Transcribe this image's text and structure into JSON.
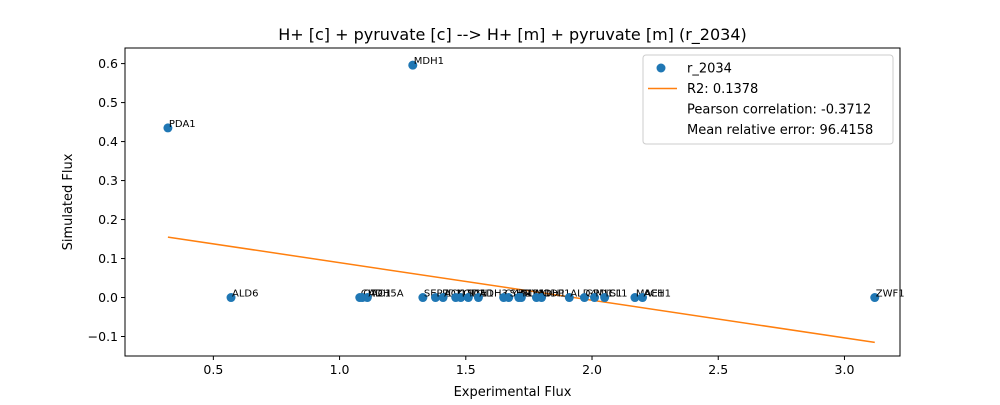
{
  "chart_data": {
    "type": "scatter",
    "title": "H+ [c] + pyruvate [c] --> H+ [m] + pyruvate [m] (r_2034)",
    "xlabel": "Experimental Flux",
    "ylabel": "Simulated Flux",
    "xlim": [
      0.15,
      3.22
    ],
    "ylim": [
      -0.15,
      0.64
    ],
    "xticks": [
      0.5,
      1.0,
      1.5,
      2.0,
      2.5,
      3.0
    ],
    "xtick_labels": [
      "0.5",
      "1.0",
      "1.5",
      "2.0",
      "2.5",
      "3.0"
    ],
    "yticks": [
      -0.1,
      0.0,
      0.1,
      0.2,
      0.3,
      0.4,
      0.5,
      0.6
    ],
    "ytick_labels": [
      "−0.1",
      "0.0",
      "0.1",
      "0.2",
      "0.3",
      "0.4",
      "0.5",
      "0.6"
    ],
    "grid": false,
    "legend_position": "top-right",
    "series": [
      {
        "name": "r_2034",
        "kind": "scatter",
        "color": "#1f77b4",
        "points": [
          {
            "x": 0.32,
            "y": 0.435,
            "label": "PDA1"
          },
          {
            "x": 1.29,
            "y": 0.596,
            "label": "MDH1"
          },
          {
            "x": 0.57,
            "y": 0.0,
            "label": "ALD6"
          },
          {
            "x": 1.08,
            "y": 0.0,
            "label": "CIT2"
          },
          {
            "x": 1.09,
            "y": 0.0,
            "label": "OAC1"
          },
          {
            "x": 1.11,
            "y": 0.0,
            "label": "ADH5A"
          },
          {
            "x": 1.33,
            "y": 0.0,
            "label": "SER1"
          },
          {
            "x": 1.38,
            "y": 0.0,
            "label": "LPD1"
          },
          {
            "x": 1.41,
            "y": 0.0,
            "label": "ACO1"
          },
          {
            "x": 1.46,
            "y": 0.0,
            "label": "KGD1"
          },
          {
            "x": 1.48,
            "y": 0.0,
            "label": "LSC1"
          },
          {
            "x": 1.51,
            "y": 0.0,
            "label": "IDH1"
          },
          {
            "x": 1.55,
            "y": 0.0,
            "label": "ADH3"
          },
          {
            "x": 1.65,
            "y": 0.0,
            "label": "CYB2"
          },
          {
            "x": 1.67,
            "y": 0.0,
            "label": "SHM2"
          },
          {
            "x": 1.71,
            "y": 0.0,
            "label": "GLY1"
          },
          {
            "x": 1.72,
            "y": 0.0,
            "label": "FUM1"
          },
          {
            "x": 1.78,
            "y": 0.0,
            "label": "ADH1"
          },
          {
            "x": 1.8,
            "y": 0.0,
            "label": "ODP1"
          },
          {
            "x": 1.91,
            "y": 0.0,
            "label": "ALD4"
          },
          {
            "x": 1.97,
            "y": 0.0,
            "label": "GPD1"
          },
          {
            "x": 2.01,
            "y": 0.0,
            "label": "MLS1"
          },
          {
            "x": 2.05,
            "y": 0.0,
            "label": "ICL1"
          },
          {
            "x": 2.17,
            "y": 0.0,
            "label": "MAE1"
          },
          {
            "x": 2.2,
            "y": 0.0,
            "label": "ACH1"
          },
          {
            "x": 3.12,
            "y": 0.0,
            "label": "ZWF1"
          }
        ]
      },
      {
        "name": "R2: 0.1378",
        "kind": "line",
        "color": "#ff7f0e",
        "points": [
          {
            "x": 0.32,
            "y": 0.155
          },
          {
            "x": 3.12,
            "y": -0.115
          }
        ]
      }
    ],
    "legend": {
      "entries": [
        {
          "label": "r_2034",
          "marker": "circle",
          "color": "#1f77b4"
        },
        {
          "label": "R2: 0.1378",
          "marker": "line",
          "color": "#ff7f0e"
        },
        {
          "label": "Pearson correlation: -0.3712",
          "marker": "none"
        },
        {
          "label": "Mean relative error: 96.4158",
          "marker": "none"
        }
      ]
    }
  }
}
